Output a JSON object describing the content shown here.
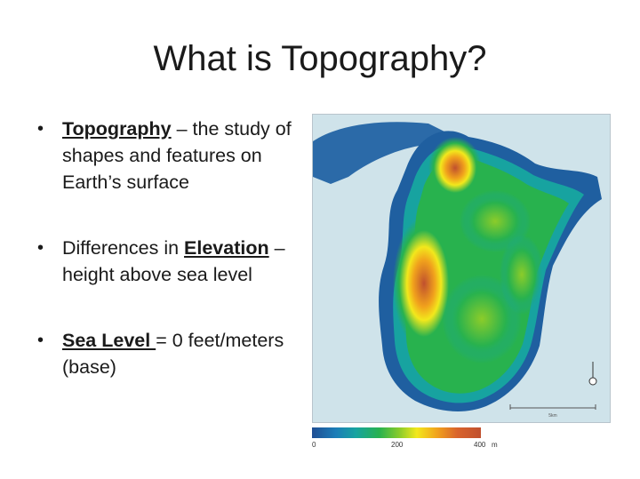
{
  "slide": {
    "title": "What is Topography?",
    "bullets": [
      {
        "term": "Topography",
        "text": " – the study of shapes and features on Earth’s surface"
      },
      {
        "pre": "Differences in ",
        "term": "Elevation",
        "text": " – height above sea level"
      },
      {
        "term": "Sea Level ",
        "text": "= 0 feet/meters (base)"
      }
    ]
  },
  "map": {
    "legend": {
      "min_label": "0",
      "mid_label": "200",
      "max_label": "400",
      "unit": "m"
    },
    "scale_label": "5km",
    "colors": {
      "water": "#cfe3ea",
      "low": "#1f4e94",
      "mid": "#28b24e",
      "high": "#f2e81c",
      "peak": "#c0502e"
    }
  }
}
